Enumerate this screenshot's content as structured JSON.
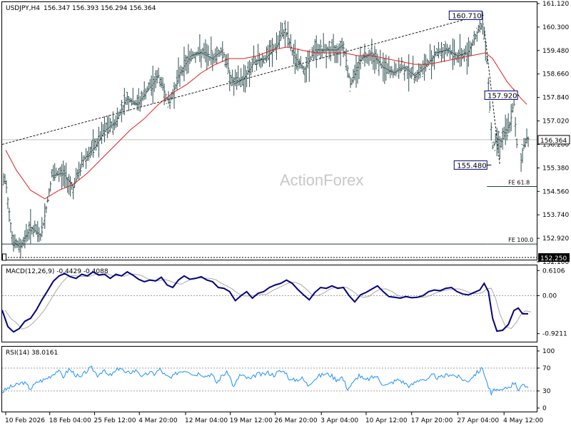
{
  "header": {
    "symbol": "USDJPY,H4",
    "ohlc": "156.347 156.393 156.294 156.364"
  },
  "watermark": "ActionForex",
  "price_panel": {
    "ylim": [
      152.1,
      161.12
    ],
    "ticks": [
      "161.120",
      "160.300",
      "159.480",
      "158.660",
      "157.840",
      "157.020",
      "156.200",
      "155.380",
      "154.560",
      "153.740",
      "152.920",
      "152.100"
    ],
    "current_price": "156.364",
    "bottom_label": "152.250",
    "level_labels": [
      {
        "text": "160.710",
        "price": 160.71,
        "bar": 673
      },
      {
        "text": "157.920",
        "price": 157.92,
        "bar": 723
      },
      {
        "text": "155.480",
        "price": 155.48,
        "bar": 684
      }
    ],
    "fe_lines": [
      {
        "text": "FE 61.8",
        "price": 154.73
      },
      {
        "text": "FE 100.0",
        "price": 152.72
      }
    ],
    "moving_average_color": "#e02020",
    "bar_color": "#2f4f4f"
  },
  "macd_panel": {
    "title": "MACD(12,26,9) -0.4429 -0.4088",
    "ylim": [
      -1.1,
      0.72
    ],
    "ticks": [
      "0.6106",
      "0.00",
      "-0.9211"
    ],
    "macd_color": "#000080",
    "signal_color": "#a9a9a9"
  },
  "rsi_panel": {
    "title": "RSI(14) 38.0161",
    "ylim": [
      0,
      100
    ],
    "ticks": [
      "100",
      "70",
      "30",
      "0"
    ],
    "line_color": "#1e90ff"
  },
  "x_axis": {
    "labels": [
      {
        "text": "10 Feb 2026",
        "bar": 5
      },
      {
        "text": "18 Feb 04:00",
        "bar": 67
      },
      {
        "text": "25 Feb 12:00",
        "bar": 130
      },
      {
        "text": "4 Mar 20:00",
        "bar": 193
      },
      {
        "text": "12 Mar 04:00",
        "bar": 258
      },
      {
        "text": "19 Mar 12:00",
        "bar": 321
      },
      {
        "text": "26 Mar 20:00",
        "bar": 384
      },
      {
        "text": "3 Apr 04:00",
        "bar": 449
      },
      {
        "text": "10 Apr 12:00",
        "bar": 512
      },
      {
        "text": "17 Apr 20:00",
        "bar": 576
      },
      {
        "text": "27 Apr 04:00",
        "bar": 641
      },
      {
        "text": "4 May 12:00",
        "bar": 706
      }
    ]
  },
  "chart_data": {
    "type": "line",
    "series": [
      {
        "name": "USDJPY,H4",
        "values": [
          [
            5,
            154.9
          ],
          [
            15,
            152.8
          ],
          [
            25,
            152.6
          ],
          [
            40,
            153.3
          ],
          [
            55,
            153.0
          ],
          [
            70,
            155.1
          ],
          [
            85,
            155.2
          ],
          [
            100,
            154.7
          ],
          [
            115,
            155.7
          ],
          [
            130,
            156.1
          ],
          [
            145,
            156.7
          ],
          [
            160,
            157.0
          ],
          [
            175,
            157.8
          ],
          [
            190,
            157.6
          ],
          [
            205,
            158.1
          ],
          [
            220,
            158.6
          ],
          [
            235,
            157.6
          ],
          [
            250,
            158.7
          ],
          [
            265,
            159.3
          ],
          [
            280,
            159.4
          ],
          [
            295,
            159.2
          ],
          [
            310,
            159.5
          ],
          [
            325,
            158.3
          ],
          [
            340,
            158.5
          ],
          [
            355,
            159.1
          ],
          [
            370,
            159.2
          ],
          [
            385,
            159.6
          ],
          [
            398,
            160.2
          ],
          [
            410,
            159.3
          ],
          [
            425,
            158.8
          ],
          [
            440,
            159.5
          ],
          [
            455,
            159.5
          ],
          [
            470,
            159.5
          ],
          [
            480,
            159.7
          ],
          [
            490,
            158.3
          ],
          [
            505,
            159.2
          ],
          [
            520,
            159.4
          ],
          [
            535,
            158.9
          ],
          [
            550,
            158.7
          ],
          [
            565,
            158.9
          ],
          [
            580,
            158.6
          ],
          [
            595,
            158.9
          ],
          [
            610,
            159.4
          ],
          [
            625,
            159.5
          ],
          [
            640,
            159.3
          ],
          [
            655,
            159.4
          ],
          [
            668,
            160.1
          ],
          [
            676,
            160.4
          ],
          [
            681,
            159.6
          ],
          [
            686,
            157.5
          ],
          [
            690,
            156.1
          ],
          [
            696,
            156.4
          ],
          [
            702,
            156.3
          ],
          [
            708,
            156.6
          ],
          [
            714,
            156.9
          ],
          [
            720,
            157.6
          ],
          [
            724,
            156.2
          ],
          [
            728,
            155.3
          ],
          [
            732,
            156.0
          ],
          [
            738,
            156.4
          ]
        ]
      },
      {
        "name": "MA",
        "values": [
          [
            5,
            156.0
          ],
          [
            20,
            155.3
          ],
          [
            40,
            154.6
          ],
          [
            60,
            154.3
          ],
          [
            80,
            154.6
          ],
          [
            100,
            154.8
          ],
          [
            120,
            155.2
          ],
          [
            140,
            155.7
          ],
          [
            160,
            156.2
          ],
          [
            180,
            156.7
          ],
          [
            200,
            157.1
          ],
          [
            220,
            157.6
          ],
          [
            240,
            158.0
          ],
          [
            260,
            158.3
          ],
          [
            280,
            158.7
          ],
          [
            300,
            159.0
          ],
          [
            320,
            159.2
          ],
          [
            340,
            159.2
          ],
          [
            360,
            159.3
          ],
          [
            380,
            159.5
          ],
          [
            400,
            159.6
          ],
          [
            420,
            159.5
          ],
          [
            440,
            159.4
          ],
          [
            460,
            159.4
          ],
          [
            480,
            159.4
          ],
          [
            500,
            159.3
          ],
          [
            520,
            159.3
          ],
          [
            540,
            159.2
          ],
          [
            560,
            159.1
          ],
          [
            580,
            159.0
          ],
          [
            600,
            159.0
          ],
          [
            620,
            159.1
          ],
          [
            640,
            159.2
          ],
          [
            660,
            159.3
          ],
          [
            680,
            159.4
          ],
          [
            690,
            159.2
          ],
          [
            700,
            158.8
          ],
          [
            710,
            158.4
          ],
          [
            720,
            158.1
          ],
          [
            730,
            157.8
          ],
          [
            738,
            157.6
          ]
        ]
      },
      {
        "name": "MACD(12,26,9)",
        "values": [
          [
            0,
            -0.35
          ],
          [
            8,
            -0.75
          ],
          [
            16,
            -0.88
          ],
          [
            24,
            -0.8
          ],
          [
            32,
            -0.62
          ],
          [
            40,
            -0.55
          ],
          [
            48,
            -0.35
          ],
          [
            56,
            -0.1
          ],
          [
            64,
            0.12
          ],
          [
            72,
            0.35
          ],
          [
            80,
            0.48
          ],
          [
            88,
            0.54
          ],
          [
            96,
            0.46
          ],
          [
            104,
            0.42
          ],
          [
            112,
            0.52
          ],
          [
            120,
            0.48
          ],
          [
            128,
            0.58
          ],
          [
            136,
            0.5
          ],
          [
            144,
            0.52
          ],
          [
            152,
            0.42
          ],
          [
            160,
            0.52
          ],
          [
            168,
            0.48
          ],
          [
            176,
            0.58
          ],
          [
            184,
            0.5
          ],
          [
            192,
            0.4
          ],
          [
            200,
            0.34
          ],
          [
            208,
            0.38
          ],
          [
            216,
            0.36
          ],
          [
            224,
            0.45
          ],
          [
            232,
            0.26
          ],
          [
            240,
            0.2
          ],
          [
            248,
            0.38
          ],
          [
            256,
            0.48
          ],
          [
            264,
            0.4
          ],
          [
            272,
            0.42
          ],
          [
            280,
            0.46
          ],
          [
            288,
            0.38
          ],
          [
            296,
            0.34
          ],
          [
            304,
            0.2
          ],
          [
            312,
            0.18
          ],
          [
            320,
            0.1
          ],
          [
            328,
            -0.12
          ],
          [
            336,
            0.0
          ],
          [
            344,
            0.1
          ],
          [
            352,
            -0.06
          ],
          [
            360,
            0.06
          ],
          [
            368,
            0.1
          ],
          [
            376,
            0.2
          ],
          [
            384,
            0.26
          ],
          [
            392,
            0.3
          ],
          [
            400,
            0.38
          ],
          [
            408,
            0.3
          ],
          [
            416,
            0.15
          ],
          [
            424,
            0.02
          ],
          [
            432,
            -0.1
          ],
          [
            440,
            0.08
          ],
          [
            448,
            0.2
          ],
          [
            456,
            0.18
          ],
          [
            464,
            0.24
          ],
          [
            472,
            0.18
          ],
          [
            480,
            0.2
          ],
          [
            488,
            0.0
          ],
          [
            496,
            -0.15
          ],
          [
            504,
            0.02
          ],
          [
            512,
            0.08
          ],
          [
            520,
            0.16
          ],
          [
            528,
            0.24
          ],
          [
            536,
            0.1
          ],
          [
            544,
            -0.02
          ],
          [
            552,
            -0.04
          ],
          [
            560,
            -0.06
          ],
          [
            568,
            -0.02
          ],
          [
            576,
            -0.05
          ],
          [
            584,
            -0.04
          ],
          [
            592,
            0.0
          ],
          [
            600,
            0.1
          ],
          [
            608,
            0.14
          ],
          [
            616,
            0.12
          ],
          [
            624,
            0.18
          ],
          [
            632,
            0.2
          ],
          [
            640,
            0.1
          ],
          [
            648,
            0.04
          ],
          [
            656,
            0.02
          ],
          [
            664,
            0.08
          ],
          [
            672,
            0.14
          ],
          [
            678,
            0.3
          ],
          [
            684,
            0.1
          ],
          [
            690,
            -0.55
          ],
          [
            696,
            -0.86
          ],
          [
            704,
            -0.84
          ],
          [
            712,
            -0.7
          ],
          [
            720,
            -0.36
          ],
          [
            726,
            -0.3
          ],
          [
            732,
            -0.44
          ],
          [
            740,
            -0.44
          ]
        ]
      },
      {
        "name": "RSI(14)",
        "values": [
          [
            0,
            28
          ],
          [
            10,
            36
          ],
          [
            20,
            40
          ],
          [
            30,
            45
          ],
          [
            40,
            34
          ],
          [
            50,
            46
          ],
          [
            60,
            50
          ],
          [
            70,
            58
          ],
          [
            78,
            66
          ],
          [
            86,
            55
          ],
          [
            94,
            68
          ],
          [
            102,
            60
          ],
          [
            110,
            52
          ],
          [
            118,
            64
          ],
          [
            126,
            70
          ],
          [
            134,
            58
          ],
          [
            142,
            66
          ],
          [
            150,
            56
          ],
          [
            158,
            62
          ],
          [
            166,
            72
          ],
          [
            174,
            60
          ],
          [
            182,
            64
          ],
          [
            190,
            66
          ],
          [
            198,
            54
          ],
          [
            206,
            62
          ],
          [
            214,
            60
          ],
          [
            222,
            68
          ],
          [
            230,
            56
          ],
          [
            238,
            52
          ],
          [
            246,
            62
          ],
          [
            254,
            66
          ],
          [
            262,
            66
          ],
          [
            270,
            58
          ],
          [
            278,
            62
          ],
          [
            286,
            56
          ],
          [
            294,
            60
          ],
          [
            302,
            44
          ],
          [
            310,
            58
          ],
          [
            318,
            62
          ],
          [
            326,
            36
          ],
          [
            334,
            58
          ],
          [
            342,
            54
          ],
          [
            350,
            50
          ],
          [
            358,
            60
          ],
          [
            366,
            58
          ],
          [
            374,
            62
          ],
          [
            382,
            58
          ],
          [
            390,
            64
          ],
          [
            398,
            64
          ],
          [
            406,
            48
          ],
          [
            414,
            50
          ],
          [
            422,
            52
          ],
          [
            430,
            40
          ],
          [
            438,
            50
          ],
          [
            446,
            56
          ],
          [
            454,
            60
          ],
          [
            462,
            58
          ],
          [
            470,
            50
          ],
          [
            478,
            54
          ],
          [
            486,
            34
          ],
          [
            494,
            44
          ],
          [
            502,
            58
          ],
          [
            510,
            48
          ],
          [
            518,
            52
          ],
          [
            526,
            56
          ],
          [
            534,
            44
          ],
          [
            542,
            40
          ],
          [
            550,
            46
          ],
          [
            558,
            50
          ],
          [
            566,
            44
          ],
          [
            574,
            38
          ],
          [
            582,
            46
          ],
          [
            590,
            52
          ],
          [
            598,
            48
          ],
          [
            606,
            58
          ],
          [
            614,
            52
          ],
          [
            622,
            56
          ],
          [
            630,
            60
          ],
          [
            638,
            56
          ],
          [
            646,
            52
          ],
          [
            654,
            46
          ],
          [
            662,
            56
          ],
          [
            670,
            64
          ],
          [
            676,
            70
          ],
          [
            682,
            44
          ],
          [
            688,
            24
          ],
          [
            694,
            34
          ],
          [
            700,
            28
          ],
          [
            708,
            34
          ],
          [
            716,
            40
          ],
          [
            722,
            46
          ],
          [
            726,
            32
          ],
          [
            732,
            38
          ],
          [
            740,
            38
          ]
        ]
      }
    ],
    "xlim": [
      0,
      752
    ]
  }
}
